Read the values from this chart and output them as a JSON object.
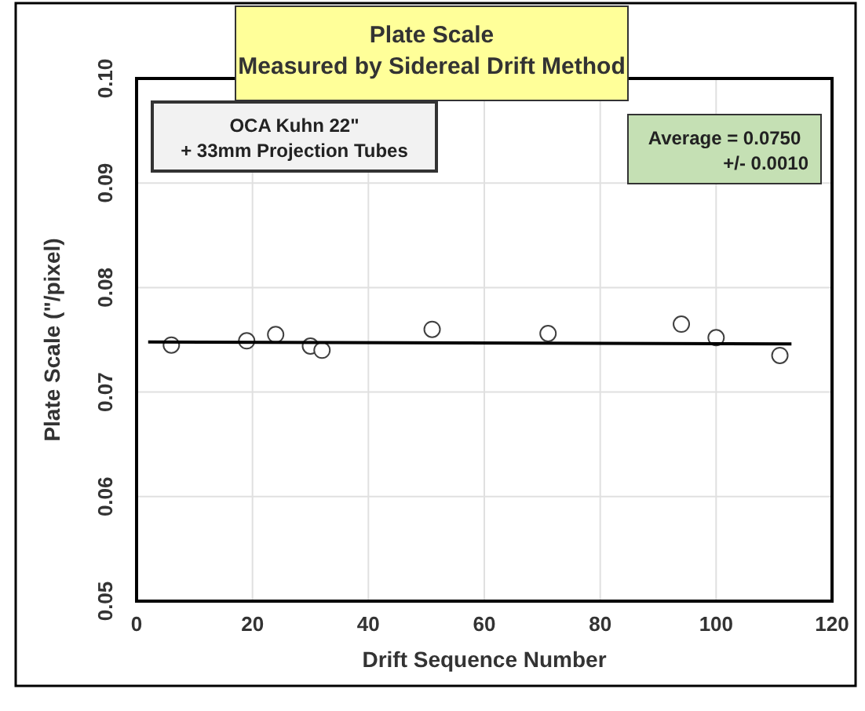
{
  "chart_data": {
    "type": "scatter",
    "title": "Plate Scale\nMeasured by Sidereal Drift Method",
    "xlabel": "Drift Sequence Number",
    "ylabel": "Plate Scale (\"/pixel)",
    "xlim": [
      0,
      120
    ],
    "xticks": [
      0,
      20,
      40,
      60,
      80,
      100,
      120
    ],
    "ylim": [
      0.05,
      0.1
    ],
    "yticks": [
      {
        "value": 0.05,
        "label": "0.05"
      },
      {
        "value": 0.06,
        "label": "0.06"
      },
      {
        "value": 0.07,
        "label": "0.07"
      },
      {
        "value": 0.08,
        "label": "0.08"
      },
      {
        "value": 0.09,
        "label": "0.09"
      },
      {
        "value": 0.1,
        "label": "0.10"
      }
    ],
    "grid": true,
    "series": [
      {
        "marker": "circle",
        "color": "#404040",
        "x": [
          6,
          19,
          24,
          30,
          32,
          51,
          71,
          94,
          100,
          111
        ],
        "values": [
          0.0745,
          0.0749,
          0.0755,
          0.0744,
          0.074,
          0.076,
          0.0756,
          0.0765,
          0.0752,
          0.0735
        ]
      },
      {
        "type": "line",
        "color": "#000000",
        "x": [
          2,
          113
        ],
        "values": [
          0.0748,
          0.0746
        ]
      }
    ],
    "annotations": [
      "OCA Kuhn 22\"\n+ 33mm Projection Tubes",
      "Average = 0.0750\n+/- 0.0010"
    ]
  }
}
